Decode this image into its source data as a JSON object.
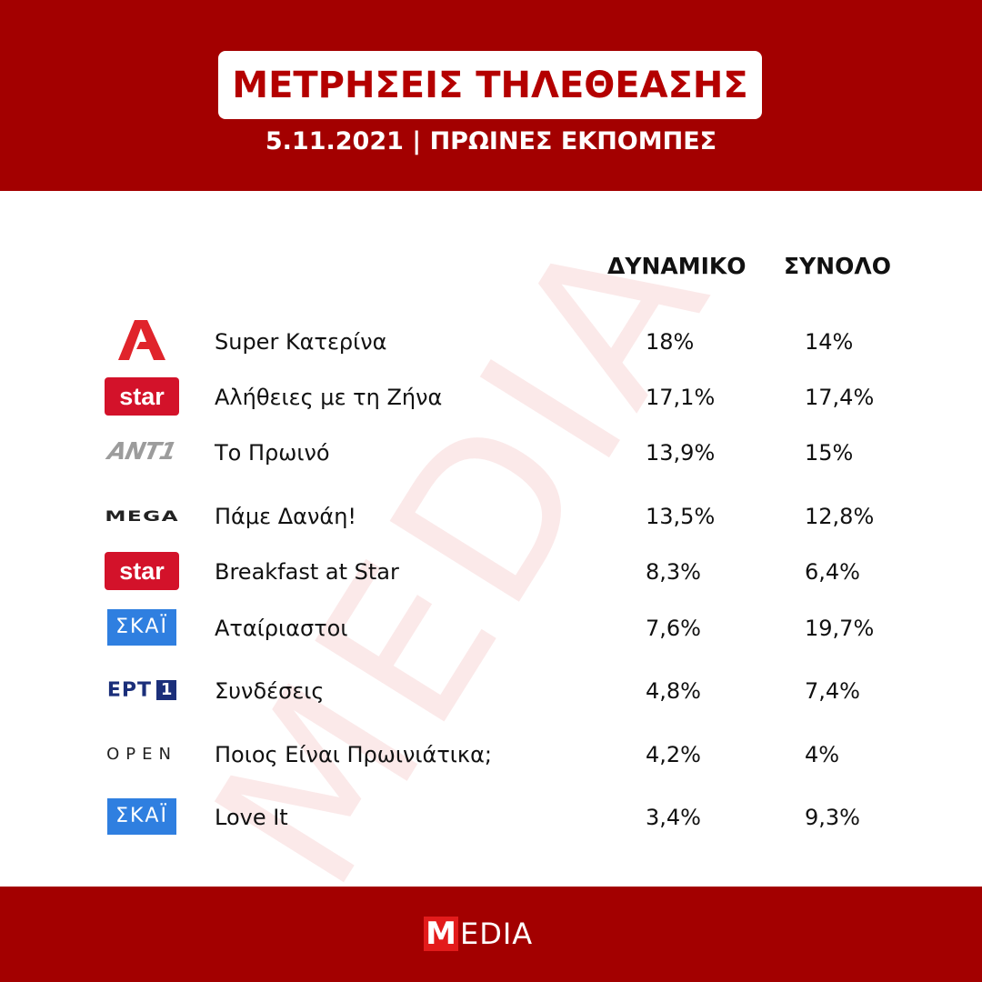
{
  "header": {
    "title": "ΜΕΤΡΗΣΕΙΣ ΤΗΛΕΘΕΑΣΗΣ",
    "subtitle": "5.11.2021 | ΠΡΩΙΝΕΣ ΕΚΠΟΜΠΕΣ"
  },
  "watermark": "MEDIA",
  "columns": {
    "dynamiko": "ΔΥΝΑΜΙΚΟ",
    "synolo": "ΣΥΝΟΛΟ"
  },
  "rows": [
    {
      "channel": "Alpha",
      "logo_icon": "alpha-logo-icon",
      "show": "Super Κατερίνα",
      "dynamiko": "18%",
      "synolo": "14%"
    },
    {
      "channel": "star",
      "logo_icon": "star-logo-icon",
      "show": "Αλήθειες με τη Ζήνα",
      "dynamiko": "17,1%",
      "synolo": "17,4%"
    },
    {
      "channel": "ANT1",
      "logo_icon": "ant1-logo-icon",
      "show": "Το Πρωινό",
      "dynamiko": "13,9%",
      "synolo": "15%"
    },
    {
      "channel": "MEGA",
      "logo_icon": "mega-logo-icon",
      "show": "Πάμε Δανάη!",
      "dynamiko": "13,5%",
      "synolo": "12,8%"
    },
    {
      "channel": "star",
      "logo_icon": "star-logo-icon",
      "show": "Breakfast at Star",
      "dynamiko": "8,3%",
      "synolo": "6,4%"
    },
    {
      "channel": "ΣΚΑΪ",
      "logo_icon": "skai-logo-icon",
      "show": "Αταίριαστοι",
      "dynamiko": "7,6%",
      "synolo": "19,7%"
    },
    {
      "channel": "ΕΡΤ1",
      "logo_icon": "ert1-logo-icon",
      "show": "Συνδέσεις",
      "dynamiko": "4,8%",
      "synolo": "7,4%"
    },
    {
      "channel": "OPEN",
      "logo_icon": "open-logo-icon",
      "show": "Ποιος Είναι Πρωινιάτικα;",
      "dynamiko": "4,2%",
      "synolo": "4%"
    },
    {
      "channel": "ΣΚΑΪ",
      "logo_icon": "skai-logo-icon",
      "show": "Love It",
      "dynamiko": "3,4%",
      "synolo": "9,3%"
    }
  ],
  "logos": {
    "star": "star",
    "skai": "ΣΚΑΪ",
    "ert": "ΕΡΤ",
    "ert_num": "1",
    "mega": "MEGA",
    "ant": "ANT1",
    "open": "OPEN"
  },
  "footer": {
    "brand_m": "M",
    "brand_rest": "EDIA"
  },
  "colors": {
    "brand_red": "#a30000",
    "title_red": "#b40000",
    "star_red": "#d3122a",
    "skai_blue": "#2f7fe0",
    "ert_navy": "#1b2f7a"
  }
}
